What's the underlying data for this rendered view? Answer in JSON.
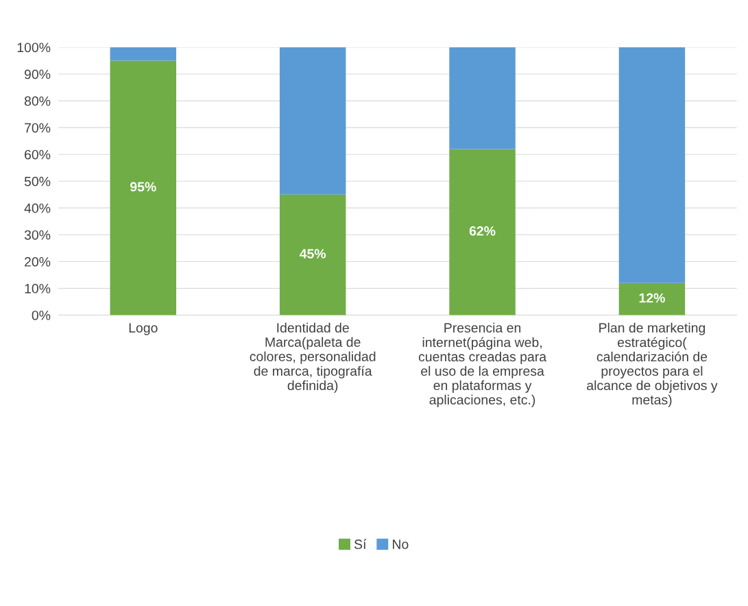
{
  "chart_data": {
    "type": "bar",
    "stacked": true,
    "categories": [
      "Logo",
      "Identidad de Marca(paleta de colores, personalidad de marca, tipografía definida)",
      "Presencia en internet(página web, cuentas creadas para el uso de la empresa en plataformas y aplicaciones, etc.)",
      "Plan de marketing estratégico( calendarización de proyectos para el alcance de objetivos y metas)"
    ],
    "series": [
      {
        "name": "Sí",
        "color": "#70ad47",
        "values": [
          95,
          45,
          62,
          12
        ],
        "value_labels": [
          "95%",
          "45%",
          "62%",
          "12%"
        ]
      },
      {
        "name": "No",
        "color": "#5b9bd5",
        "values": [
          5,
          55,
          38,
          88
        ]
      }
    ],
    "ylim": [
      0,
      100
    ],
    "yticks": [
      {
        "value": 0,
        "label": "0%"
      },
      {
        "value": 10,
        "label": "10%"
      },
      {
        "value": 20,
        "label": "20%"
      },
      {
        "value": 30,
        "label": "30%"
      },
      {
        "value": 40,
        "label": "40%"
      },
      {
        "value": 50,
        "label": "50%"
      },
      {
        "value": 60,
        "label": "60%"
      },
      {
        "value": 70,
        "label": "70%"
      },
      {
        "value": 80,
        "label": "80%"
      },
      {
        "value": 90,
        "label": "90%"
      },
      {
        "value": 100,
        "label": "100%"
      }
    ],
    "grid": "y",
    "legend": "bottom"
  }
}
